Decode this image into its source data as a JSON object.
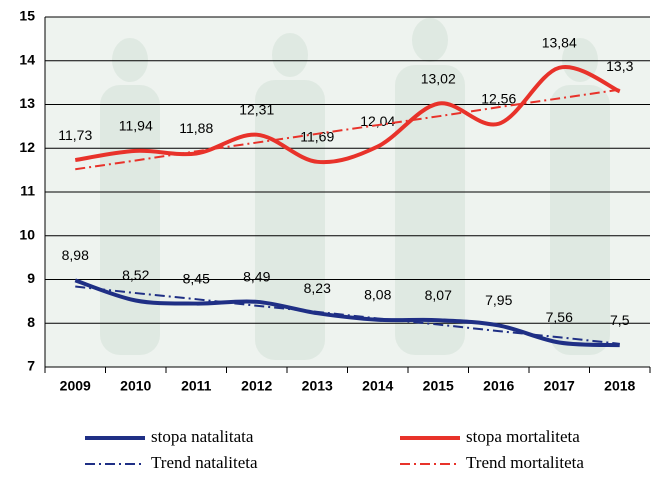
{
  "chart_data": {
    "type": "line",
    "categories": [
      "2009",
      "2010",
      "2011",
      "2012",
      "2013",
      "2014",
      "2015",
      "2016",
      "2017",
      "2018"
    ],
    "series": [
      {
        "name": "stopa natalitata",
        "color": "#1f2f85",
        "width": 4,
        "dash": "solid",
        "smooth": true,
        "values": [
          8.98,
          8.52,
          8.45,
          8.49,
          8.23,
          8.08,
          8.07,
          7.95,
          7.56,
          7.5
        ],
        "value_labels": [
          "8,98",
          "8,52",
          "8,45",
          "8,49",
          "8,23",
          "8,08",
          "8,07",
          "7,95",
          "7,56",
          "7,5"
        ]
      },
      {
        "name": "stopa mortaliteta",
        "color": "#e8322a",
        "width": 4,
        "dash": "solid",
        "smooth": true,
        "values": [
          11.73,
          11.94,
          11.88,
          12.31,
          11.69,
          12.04,
          13.02,
          12.56,
          13.84,
          13.3
        ],
        "value_labels": [
          "11,73",
          "11,94",
          "11,88",
          "12,31",
          "11,69",
          "12,04",
          "13,02",
          "12,56",
          "13,84",
          "13,3"
        ]
      },
      {
        "name": "Trend nataliteta",
        "color": "#1f2f85",
        "width": 2,
        "dash": "dash-dot",
        "smooth": false,
        "values": [
          8.84,
          8.69,
          8.55,
          8.4,
          8.26,
          8.11,
          7.97,
          7.82,
          7.68,
          7.53
        ]
      },
      {
        "name": "Trend mortaliteta",
        "color": "#e8322a",
        "width": 2,
        "dash": "dash-dot",
        "smooth": false,
        "values": [
          11.52,
          11.72,
          11.93,
          12.13,
          12.33,
          12.53,
          12.73,
          12.94,
          13.14,
          13.34
        ]
      }
    ],
    "ylim": [
      7,
      15
    ],
    "yticks": [
      7,
      8,
      9,
      10,
      11,
      12,
      13,
      14,
      15
    ],
    "grid": true
  }
}
